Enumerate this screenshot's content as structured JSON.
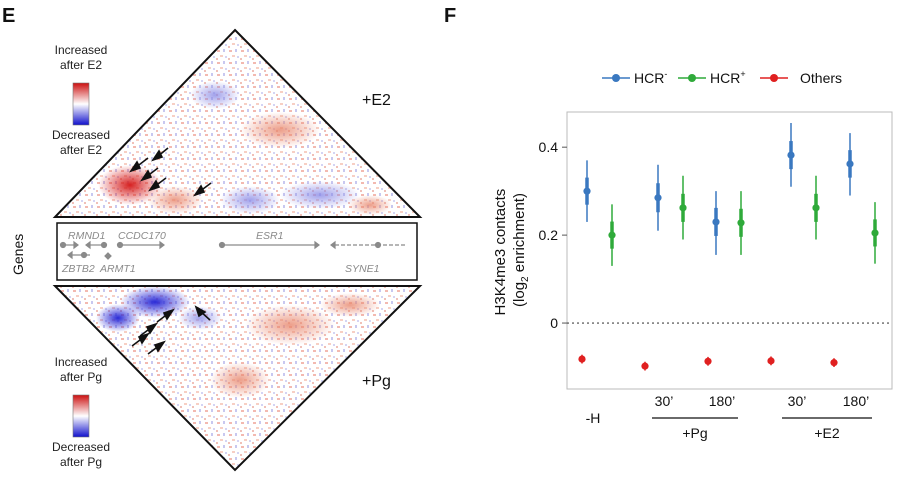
{
  "panel_e": {
    "letter": "E",
    "top_colorbar": {
      "top_line1": "Increased",
      "top_line2": "after E2",
      "bottom_line1": "Decreased",
      "bottom_line2": "after E2"
    },
    "bottom_colorbar": {
      "top_line1": "Increased",
      "top_line2": "after Pg",
      "bottom_line1": "Decreased",
      "bottom_line2": "after Pg"
    },
    "top_condition": "+E2",
    "bottom_condition": "+Pg",
    "genes_track_label": "Genes",
    "genes": [
      "RMND1",
      "CCDC170",
      "ESR1",
      "ZBTB2",
      "ARMT1",
      "SYNE1"
    ],
    "colors": {
      "increase": "#d62020",
      "decrease": "#2a2ad6"
    }
  },
  "panel_f": {
    "letter": "F",
    "chart_data": {
      "type": "scatter",
      "ylabel_main": "H3K4me3 contacts",
      "ylabel_paren_open": "(log",
      "ylabel_sub": "2",
      "ylabel_paren_close": " enrichment)",
      "ylim": [
        -0.15,
        0.48
      ],
      "yticks": [
        "0.4",
        "0.2",
        "0"
      ],
      "zero_line": "dotted",
      "time_labels": [
        "30’",
        "180’",
        "30’",
        "180’"
      ],
      "group_labels": [
        "-H",
        "+Pg",
        "+E2"
      ],
      "legend": [
        {
          "name": "HCR",
          "sup": "-",
          "color": "#3a78c0"
        },
        {
          "name": "HCR",
          "sup": "+",
          "color": "#2faa3a"
        },
        {
          "name": "Others",
          "sup": "",
          "color": "#e02020"
        }
      ],
      "series": [
        {
          "key": "hcr_minus",
          "color": "#3a78c0",
          "values": [
            0.3,
            0.285,
            0.23,
            0.382,
            0.362
          ],
          "ci_low": [
            0.23,
            0.21,
            0.155,
            0.31,
            0.29
          ],
          "ci_high": [
            0.37,
            0.36,
            0.3,
            0.455,
            0.432
          ]
        },
        {
          "key": "hcr_plus",
          "color": "#2faa3a",
          "values": [
            0.2,
            0.262,
            0.228,
            0.262,
            0.205
          ],
          "ci_low": [
            0.13,
            0.19,
            0.155,
            0.19,
            0.135
          ],
          "ci_high": [
            0.27,
            0.335,
            0.3,
            0.335,
            0.275
          ]
        },
        {
          "key": "others",
          "color": "#e02020",
          "values": [
            -0.082,
            -0.098,
            -0.087,
            -0.086,
            -0.09
          ],
          "ci_low": [
            -0.092,
            -0.108,
            -0.097,
            -0.096,
            -0.1
          ],
          "ci_high": [
            -0.072,
            -0.088,
            -0.077,
            -0.076,
            -0.08
          ]
        }
      ]
    }
  }
}
